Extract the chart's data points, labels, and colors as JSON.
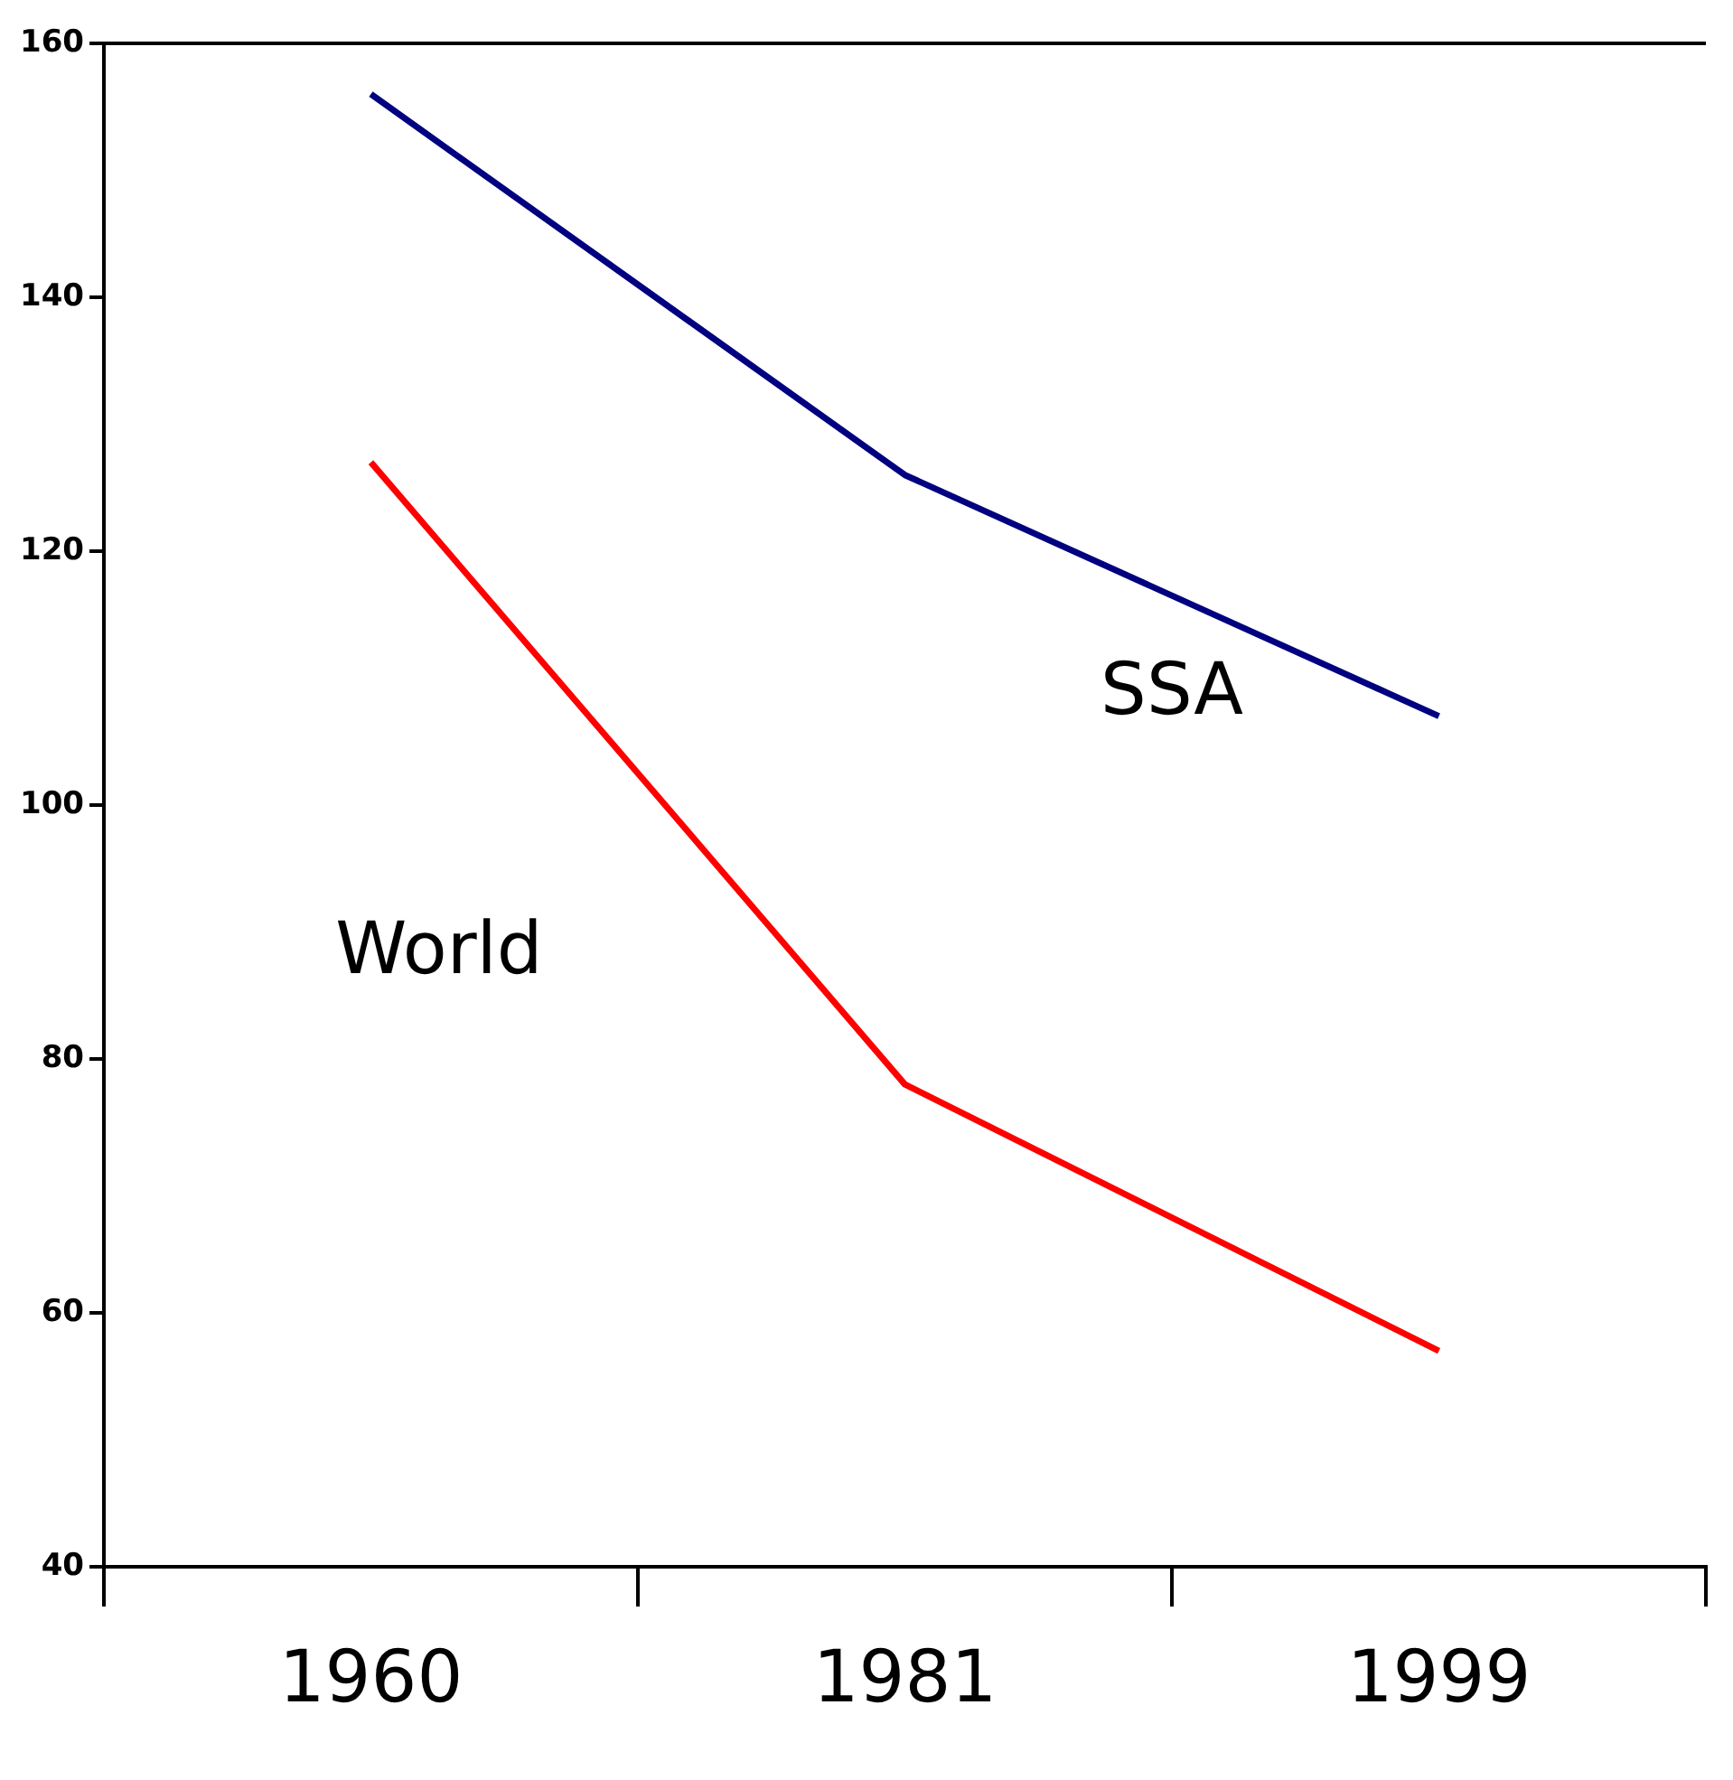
{
  "chart_data": {
    "type": "line",
    "categories": [
      "1960",
      "1981",
      "1999"
    ],
    "series": [
      {
        "name": "SSA",
        "color": "#000080",
        "values": [
          156,
          126,
          107
        ]
      },
      {
        "name": "World",
        "color": "#ff0000",
        "values": [
          127,
          78,
          57
        ]
      }
    ],
    "ylim": [
      40,
      160
    ],
    "yticks": [
      40,
      60,
      80,
      100,
      120,
      140,
      160
    ],
    "grid": false,
    "legend": false,
    "marker": "none"
  }
}
